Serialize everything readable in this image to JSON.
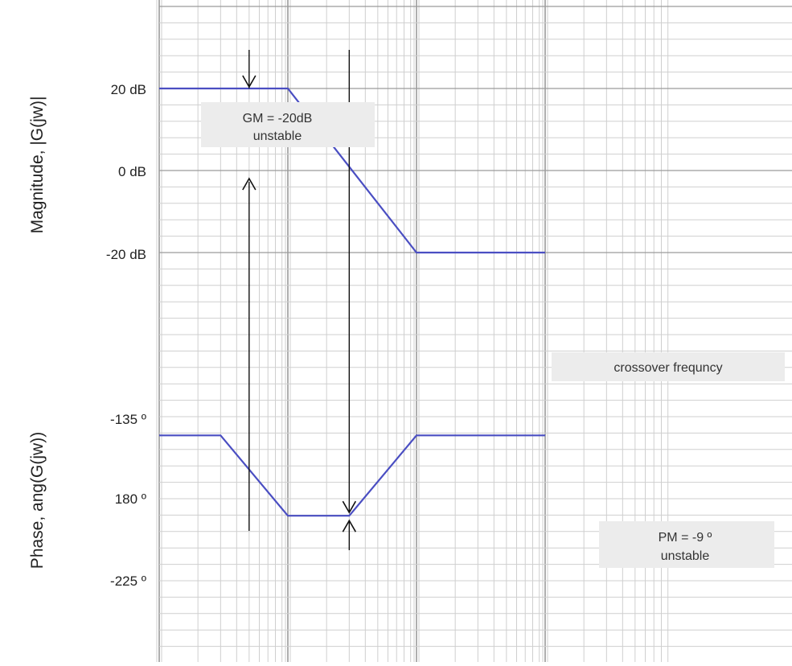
{
  "chart_data": {
    "type": "line",
    "title": "",
    "x_scale": "log",
    "x_range": [
      0.1,
      100
    ],
    "grid": true,
    "colors": {
      "trace": "#4a4ec2",
      "grid_major": "#9a9a9a",
      "grid_minor": "#cfcfcf",
      "arrow": "#111111",
      "annotation_bg": "#ececec"
    },
    "magnitude": {
      "ylabel": "Magnitude, |G(jw)|",
      "yticks": [
        "20 dB",
        "0 dB",
        "-20 dB"
      ],
      "ytick_values": [
        20,
        0,
        -20
      ],
      "ylim": [
        -60,
        40
      ],
      "series": [
        {
          "x": [
            0.1,
            0.1,
            1,
            10,
            100
          ],
          "y": [
            20,
            20,
            20,
            -20,
            -20
          ]
        }
      ]
    },
    "phase": {
      "ylabel": "Phase, ang(G(jw))",
      "yticks": [
        "-135 º",
        "180 º",
        "-225 º"
      ],
      "ytick_values": [
        -135,
        -180,
        -225
      ],
      "ylim": [
        -260,
        -90
      ],
      "series": [
        {
          "x": [
            0.1,
            0.3,
            1,
            3,
            10,
            100
          ],
          "y": [
            -145,
            -145,
            -190,
            -190,
            -145,
            -145
          ]
        }
      ]
    },
    "annotations": [
      {
        "label": "GM = -20dB",
        "sublabel": "unstable",
        "panel": "magnitude",
        "x": 0.5
      },
      {
        "label": "crossover frequncy",
        "panel": "magnitude",
        "x": 3
      },
      {
        "label": "PM = -9 º",
        "sublabel": "unstable",
        "panel": "phase",
        "x": 3
      }
    ]
  }
}
